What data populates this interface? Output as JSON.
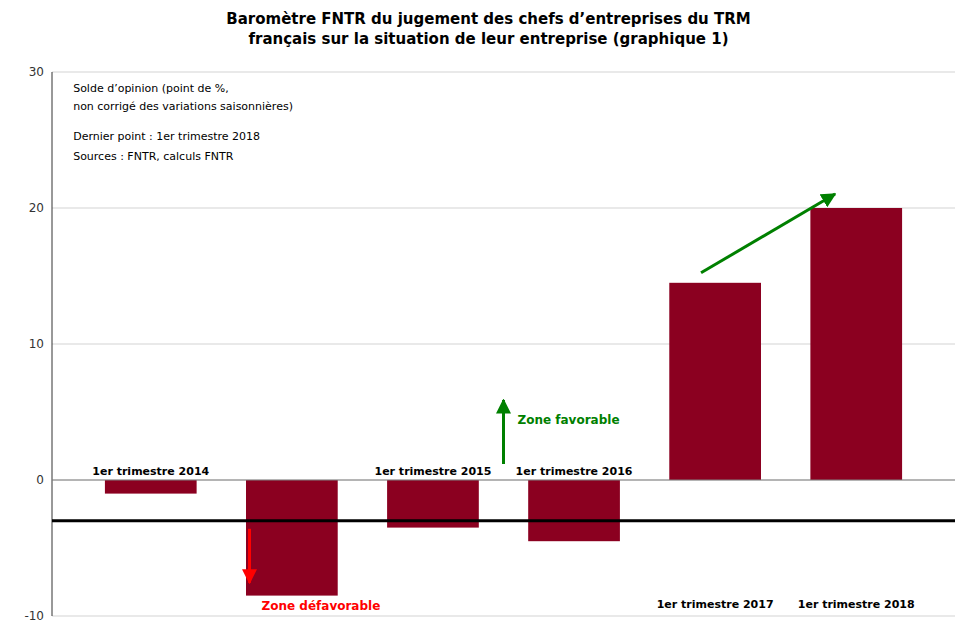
{
  "chart_data": {
    "type": "bar",
    "title": "Baromètre FNTR du jugement des chefs d’entreprises du TRM\nfrançais sur la situation de leur entreprise (graphique 1)",
    "categories": [
      "1er trimestre 2014",
      null,
      "1er trimestre 2015",
      "1er trimestre 2016",
      "1er trimestre 2017",
      "1er trimestre 2018"
    ],
    "values": [
      -1.0,
      -8.5,
      -3.5,
      -4.5,
      14.5,
      20.0
    ],
    "color": "#8B0020",
    "ylim": [
      -10,
      30
    ],
    "yticks": [
      -10,
      0,
      10,
      20,
      30
    ],
    "grid": true,
    "reference_line": -3.0,
    "annotations": [
      "Solde d’opinion (point de %,\nnon corrigé des variations saisonnières)",
      "Dernier point : 1er trimestre 2018",
      "Sources : FNTR, calculs FNTR"
    ],
    "zone_labels": {
      "favorable": "Zone favorable",
      "unfavorable": "Zone défavorable"
    }
  }
}
